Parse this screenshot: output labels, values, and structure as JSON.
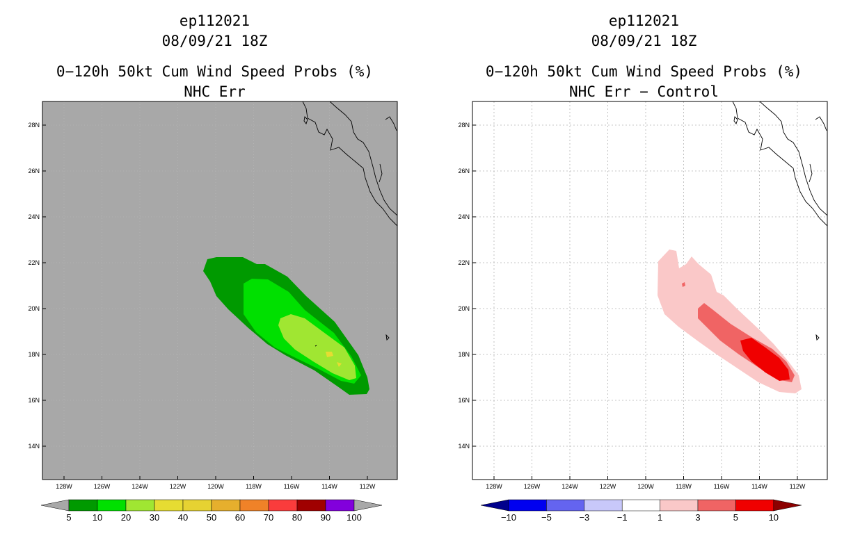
{
  "panels": [
    {
      "storm_id": "ep112021",
      "datetime": "08/09/21 18Z",
      "title": "0−120h 50kt Cum Wind Speed Probs (%)",
      "subtitle": "NHC Err",
      "colorbar": {
        "labels": [
          "5",
          "10",
          "20",
          "30",
          "40",
          "50",
          "60",
          "70",
          "80",
          "90",
          "100"
        ],
        "colors": [
          "#a8a8a8",
          "#009a00",
          "#00e000",
          "#a0e632",
          "#e6dc32",
          "#e6d232",
          "#e6af2d",
          "#f08228",
          "#fa3c3c",
          "#a00000",
          "#8200dc",
          "#a8a8a8"
        ]
      }
    },
    {
      "storm_id": "ep112021",
      "datetime": "08/09/21 18Z",
      "title": "0−120h 50kt Cum Wind Speed Probs (%)",
      "subtitle": "NHC Err − Control",
      "colorbar": {
        "labels": [
          "−10",
          "−5",
          "−3",
          "−1",
          "1",
          "3",
          "5",
          "10"
        ],
        "colors": [
          "#00008c",
          "#0000f0",
          "#6464f0",
          "#c8c8fa",
          "#ffffff",
          "#fac8c8",
          "#f06464",
          "#f00000",
          "#8c0000"
        ]
      }
    }
  ],
  "map": {
    "lat_labels": [
      "28N",
      "26N",
      "24N",
      "22N",
      "20N",
      "18N",
      "16N",
      "14N"
    ],
    "lon_labels": [
      "128W",
      "126W",
      "124W",
      "122W",
      "120W",
      "118W",
      "116W",
      "114W",
      "112W"
    ]
  },
  "chart_data": [
    {
      "type": "heatmap",
      "title": "0−120h 50kt Cum Wind Speed Probs (%) — NHC Err",
      "x_range": [
        -129.8,
        -111.1
      ],
      "y_range": [
        12.5,
        29.0
      ],
      "contour_levels": [
        5,
        10,
        20,
        30,
        40,
        50,
        60,
        70,
        80,
        90,
        100
      ],
      "regions": [
        {
          "level": 5,
          "area": "elongated swath from about 21.5N 120.5W to 16.5N 112.5W"
        },
        {
          "level": 10,
          "area": "core swath from about 21N 118.5W to 17N 112.8W"
        },
        {
          "level": 20,
          "area": "inner swath from about 19.5N 116.5W to 17N 113W"
        },
        {
          "level": 30,
          "area": "small spots near 18N 114W and 17.5N 113.5W"
        }
      ]
    },
    {
      "type": "heatmap",
      "title": "0−120h 50kt Cum Wind Speed Probs (%) — NHC Err − Control",
      "x_range": [
        -129.8,
        -111.1
      ],
      "y_range": [
        12.5,
        29.0
      ],
      "contour_levels": [
        -10,
        -5,
        -3,
        -1,
        1,
        3,
        5,
        10
      ],
      "regions": [
        {
          "level": 1,
          "area": "swath from about 22.5N 119W to 16.5N 112.5W"
        },
        {
          "level": 3,
          "area": "band from about 20N 117W to 17N 112.8W"
        },
        {
          "level": 5,
          "area": "core from about 18.5N 115W to 17N 113W"
        }
      ]
    }
  ]
}
